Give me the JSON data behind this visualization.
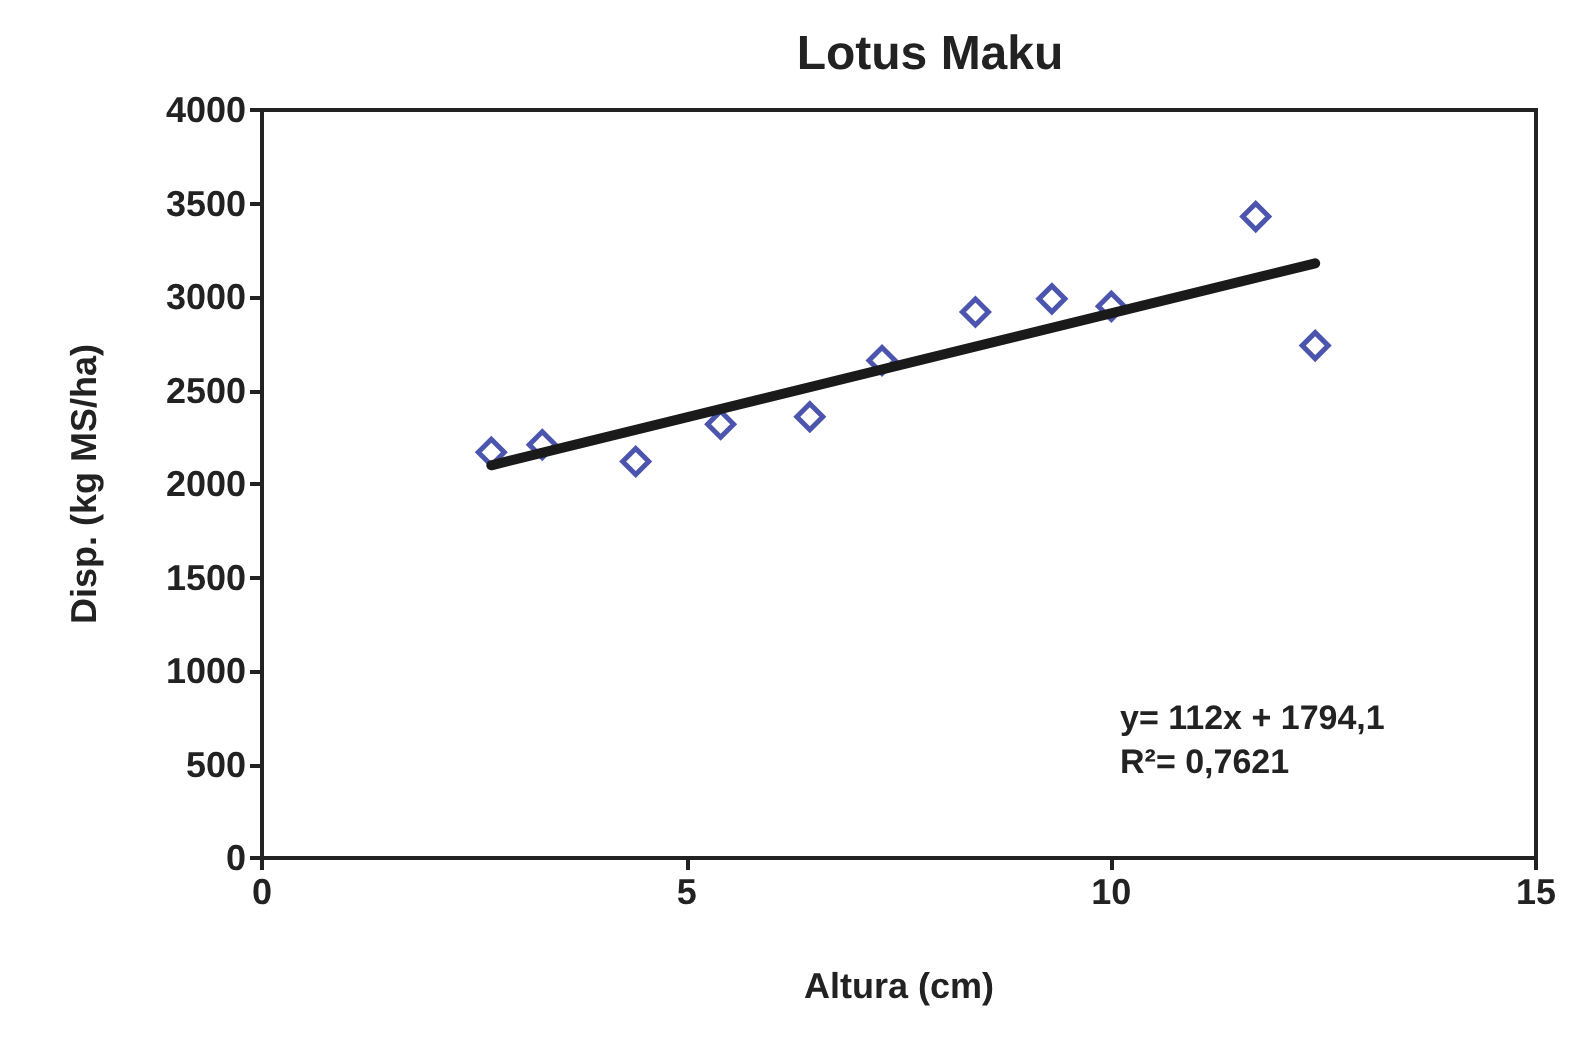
{
  "chart_data": {
    "type": "scatter",
    "title": "Lotus Maku",
    "xlabel": "Altura (cm)",
    "ylabel": "Disp. (kg MS/ha)",
    "xlim": [
      0,
      15
    ],
    "xticks": [
      0,
      5,
      10,
      15
    ],
    "ylim": [
      0,
      4000
    ],
    "yticks": [
      0,
      500,
      1000,
      1500,
      2000,
      2500,
      3000,
      3500,
      4000
    ],
    "grid": false,
    "marker": "diamond",
    "series": [
      {
        "color": "#1f2a9a",
        "x": [
          2.7,
          3.3,
          4.4,
          5.4,
          6.45,
          7.3,
          8.4,
          9.3,
          10.0,
          11.7,
          12.4
        ],
        "values": [
          2170,
          2210,
          2120,
          2320,
          2360,
          2660,
          2920,
          2990,
          2950,
          3430,
          2740
        ]
      },
      {
        "type": "line",
        "color": "#1a1a1a",
        "marker": "none",
        "line_style": "solid",
        "x": [
          2.7,
          12.4
        ],
        "values": [
          2100,
          3180
        ]
      }
    ],
    "annotations": [
      "y= 112x + 1794,1",
      "R²= 0,7621"
    ]
  }
}
